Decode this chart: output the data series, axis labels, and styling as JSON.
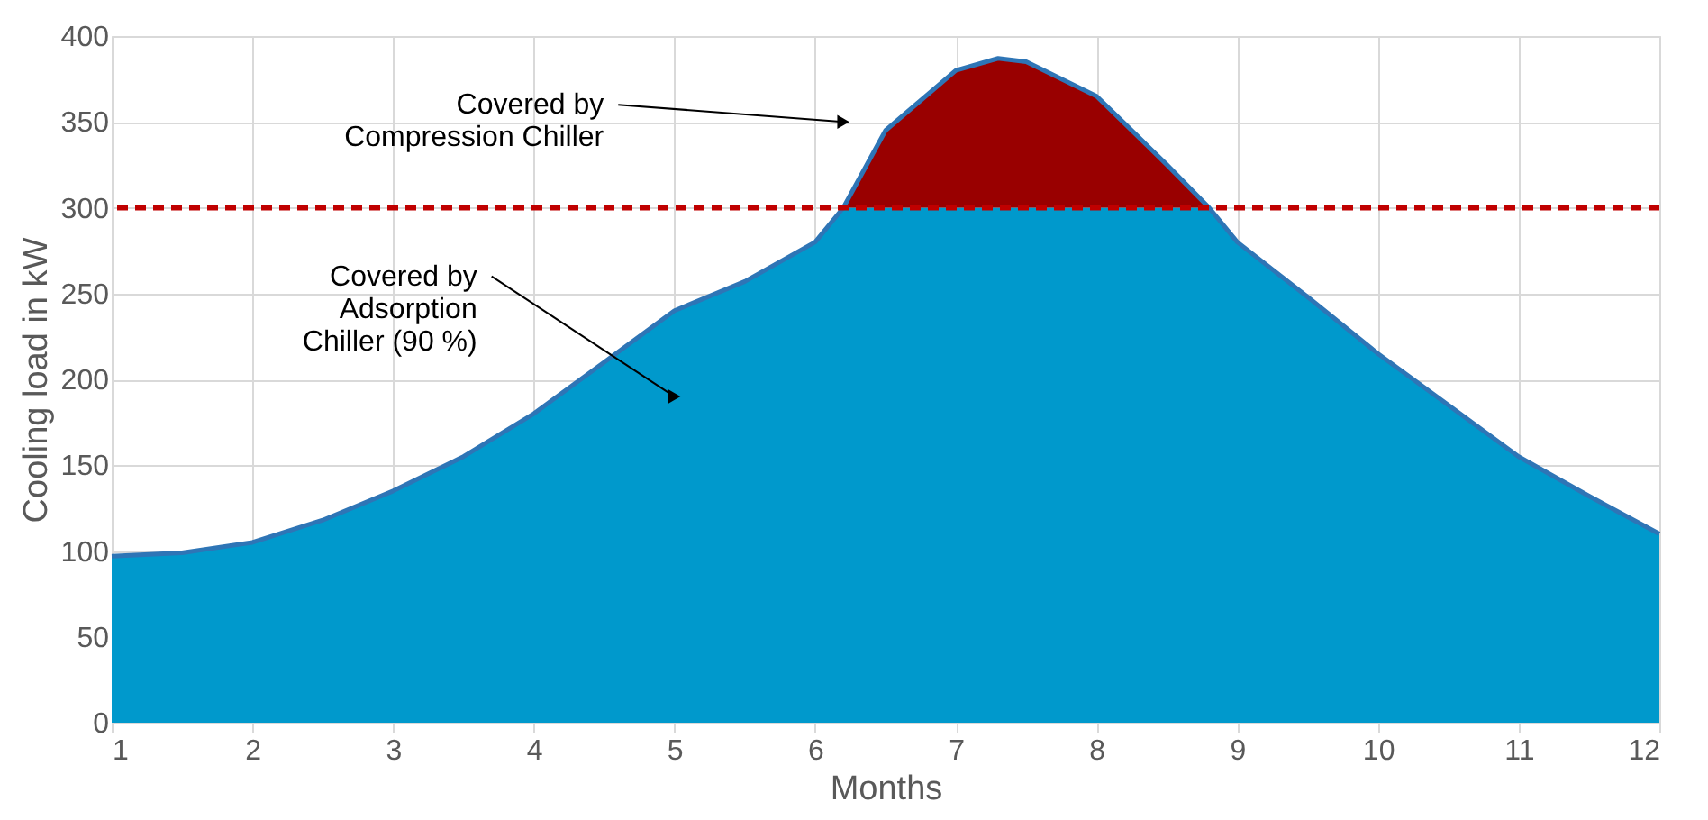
{
  "chart_data": {
    "type": "area",
    "xlabel": "Months",
    "ylabel": "Cooling load in kW",
    "stacked": true,
    "x": [
      1,
      1.5,
      2,
      2.5,
      3,
      3.5,
      4,
      4.5,
      5,
      5.5,
      6,
      6.2,
      6.5,
      7,
      7.3,
      7.5,
      8,
      8.5,
      8.8,
      9,
      9.5,
      10,
      10.5,
      11,
      11.5,
      12
    ],
    "series": [
      {
        "color": "#0099cc",
        "values": [
          97,
          99,
          105,
          118,
          135,
          155,
          180,
          210,
          240,
          257,
          280,
          300,
          300,
          300,
          300,
          300,
          300,
          300,
          300,
          280,
          248,
          215,
          185,
          155,
          132,
          110
        ]
      },
      {
        "color": "#990000",
        "values": [
          0,
          0,
          0,
          0,
          0,
          0,
          0,
          0,
          0,
          0,
          0,
          0,
          45,
          80,
          87,
          85,
          65,
          25,
          0,
          0,
          0,
          0,
          0,
          0,
          0,
          0
        ]
      }
    ],
    "xlim": [
      1,
      12
    ],
    "xticks": [
      1,
      2,
      3,
      4,
      5,
      6,
      7,
      8,
      9,
      10,
      11,
      12
    ],
    "ylim": [
      0,
      400
    ],
    "yticks": [
      0,
      50,
      100,
      150,
      200,
      250,
      300,
      350,
      400
    ],
    "grid": true,
    "ref_lines": [
      {
        "axis": "y",
        "value": 300,
        "color": "#c00000",
        "line_style": "dashed"
      }
    ],
    "annotations": [
      {
        "text": "Covered by\nCompression Chiller",
        "x": 6.2,
        "y": 350
      },
      {
        "text": "Covered by\nAdsorption\nChiller (90 %)",
        "x": 5,
        "y": 190
      }
    ]
  }
}
